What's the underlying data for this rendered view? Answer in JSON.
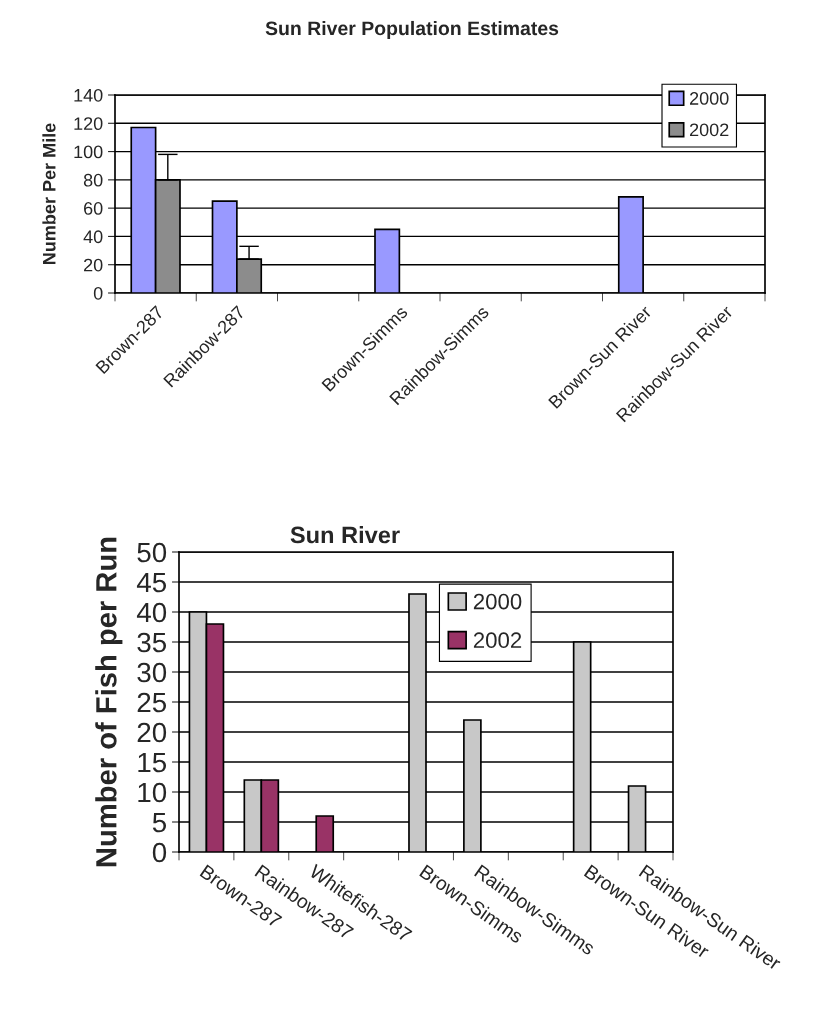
{
  "chart_data": [
    {
      "type": "bar",
      "title": "Sun River Population Estimates",
      "ylabel": "Number Per Mile",
      "categories": [
        "Brown-287",
        "Rainbow-287",
        null,
        "Brown-Simms",
        "Rainbow-Simms",
        null,
        "Brown-Sun River",
        "Rainbow-Sun River"
      ],
      "series": [
        {
          "name": "2000",
          "color": "#9999ff",
          "values": [
            117,
            65,
            null,
            45,
            null,
            null,
            68,
            null
          ]
        },
        {
          "name": "2002",
          "color": "#8c8c8c",
          "values": [
            80,
            24,
            null,
            null,
            null,
            null,
            null,
            null
          ],
          "errors": [
            [
              80,
              98
            ],
            [
              24,
              33
            ],
            null,
            null,
            null,
            null,
            null,
            null
          ]
        }
      ],
      "ylim": [
        0,
        140
      ],
      "yticks": [
        0,
        20,
        40,
        60,
        80,
        100,
        120,
        140
      ],
      "grid": "y",
      "legend": "top right"
    },
    {
      "type": "bar",
      "title": "Sun River",
      "ylabel": "Number of Fish per Run",
      "categories": [
        "Brown-287",
        "Rainbow-287",
        "Whitefish-287",
        null,
        "Brown-Simms",
        "Rainbow-Simms",
        null,
        "Brown-Sun River",
        "Rainbow-Sun River"
      ],
      "series": [
        {
          "name": "2000",
          "color": "#c8c8c8",
          "values": [
            40,
            12,
            null,
            null,
            43,
            22,
            null,
            35,
            11
          ]
        },
        {
          "name": "2002",
          "color": "#993366",
          "values": [
            38,
            12,
            6,
            null,
            null,
            null,
            null,
            null,
            null
          ]
        }
      ],
      "ylim": [
        0,
        50
      ],
      "yticks": [
        0,
        5,
        10,
        15,
        20,
        25,
        30,
        35,
        40,
        45,
        50
      ],
      "grid": "y",
      "legend": "top"
    }
  ]
}
